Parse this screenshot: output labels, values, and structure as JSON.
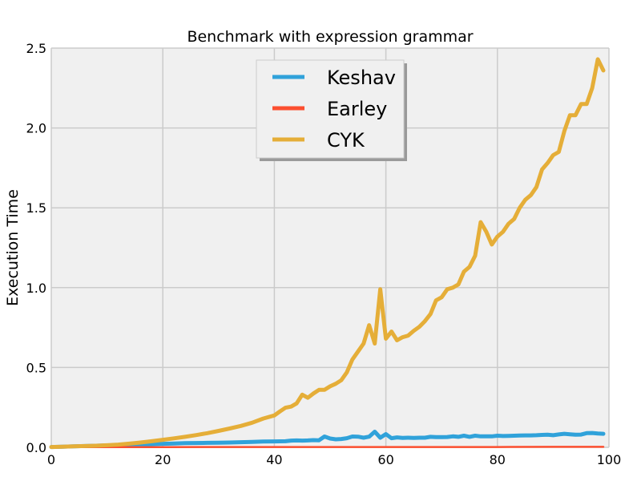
{
  "chart_data": {
    "type": "line",
    "title": "Benchmark with expression grammar",
    "xlabel": "",
    "ylabel": "Execution Time",
    "xlim": [
      0,
      100
    ],
    "ylim": [
      0,
      2.5
    ],
    "xticks": [
      "0",
      "20",
      "40",
      "60",
      "80",
      "100"
    ],
    "yticks": [
      "0.0",
      "0.5",
      "1.0",
      "1.5",
      "2.0",
      "2.5"
    ],
    "grid": true,
    "legend_position": "top-center",
    "series": [
      {
        "name": "Keshav",
        "color": "#30a2da",
        "x": [
          0,
          2,
          4,
          6,
          8,
          10,
          12,
          14,
          16,
          18,
          20,
          22,
          24,
          26,
          28,
          30,
          32,
          34,
          36,
          38,
          40,
          42,
          43,
          44,
          45,
          46,
          47,
          48,
          49,
          50,
          51,
          52,
          53,
          54,
          55,
          56,
          57,
          58,
          59,
          60,
          61,
          62,
          63,
          64,
          65,
          66,
          67,
          68,
          69,
          70,
          71,
          72,
          73,
          74,
          75,
          76,
          77,
          78,
          79,
          80,
          81,
          82,
          83,
          84,
          85,
          86,
          87,
          88,
          89,
          90,
          91,
          92,
          93,
          94,
          95,
          96,
          97,
          98,
          99
        ],
        "values": [
          0.002,
          0.004,
          0.006,
          0.008,
          0.01,
          0.012,
          0.014,
          0.016,
          0.018,
          0.02,
          0.022,
          0.024,
          0.026,
          0.027,
          0.028,
          0.029,
          0.03,
          0.032,
          0.034,
          0.036,
          0.037,
          0.038,
          0.042,
          0.043,
          0.042,
          0.043,
          0.045,
          0.044,
          0.068,
          0.055,
          0.05,
          0.052,
          0.057,
          0.068,
          0.067,
          0.06,
          0.067,
          0.098,
          0.06,
          0.083,
          0.057,
          0.062,
          0.059,
          0.06,
          0.059,
          0.06,
          0.06,
          0.066,
          0.064,
          0.064,
          0.065,
          0.069,
          0.066,
          0.073,
          0.066,
          0.073,
          0.069,
          0.069,
          0.069,
          0.073,
          0.071,
          0.072,
          0.073,
          0.074,
          0.075,
          0.075,
          0.076,
          0.078,
          0.079,
          0.076,
          0.081,
          0.085,
          0.082,
          0.079,
          0.08,
          0.089,
          0.09,
          0.087,
          0.085
        ]
      },
      {
        "name": "Earley",
        "color": "#fc4f30",
        "x": [
          0,
          10,
          20,
          30,
          40,
          50,
          60,
          70,
          80,
          90,
          99
        ],
        "values": [
          0.001,
          0.001,
          0.001,
          0.002,
          0.002,
          0.002,
          0.002,
          0.002,
          0.002,
          0.003,
          0.003
        ]
      },
      {
        "name": "CYK",
        "color": "#e5ae38",
        "x": [
          0,
          2,
          4,
          6,
          8,
          10,
          12,
          14,
          16,
          18,
          20,
          22,
          24,
          26,
          28,
          30,
          32,
          34,
          36,
          38,
          40,
          41,
          42,
          43,
          44,
          45,
          46,
          47,
          48,
          49,
          50,
          51,
          52,
          53,
          54,
          55,
          56,
          57,
          58,
          59,
          60,
          61,
          62,
          63,
          64,
          65,
          66,
          67,
          68,
          69,
          70,
          71,
          72,
          73,
          74,
          75,
          76,
          77,
          78,
          79,
          80,
          81,
          82,
          83,
          84,
          85,
          86,
          87,
          88,
          89,
          90,
          91,
          92,
          93,
          94,
          95,
          96,
          97,
          98,
          99
        ],
        "values": [
          0.002,
          0.004,
          0.006,
          0.008,
          0.01,
          0.013,
          0.017,
          0.023,
          0.03,
          0.038,
          0.047,
          0.056,
          0.066,
          0.077,
          0.089,
          0.103,
          0.118,
          0.134,
          0.154,
          0.18,
          0.2,
          0.225,
          0.248,
          0.255,
          0.275,
          0.33,
          0.31,
          0.337,
          0.36,
          0.36,
          0.382,
          0.398,
          0.42,
          0.47,
          0.55,
          0.6,
          0.65,
          0.765,
          0.65,
          0.99,
          0.68,
          0.725,
          0.67,
          0.69,
          0.7,
          0.73,
          0.755,
          0.79,
          0.835,
          0.92,
          0.94,
          0.99,
          1.0,
          1.02,
          1.1,
          1.13,
          1.2,
          1.41,
          1.35,
          1.27,
          1.32,
          1.35,
          1.4,
          1.43,
          1.5,
          1.55,
          1.58,
          1.63,
          1.74,
          1.78,
          1.83,
          1.85,
          1.98,
          2.08,
          2.08,
          2.15,
          2.15,
          2.25,
          2.43,
          2.36
        ]
      }
    ]
  }
}
